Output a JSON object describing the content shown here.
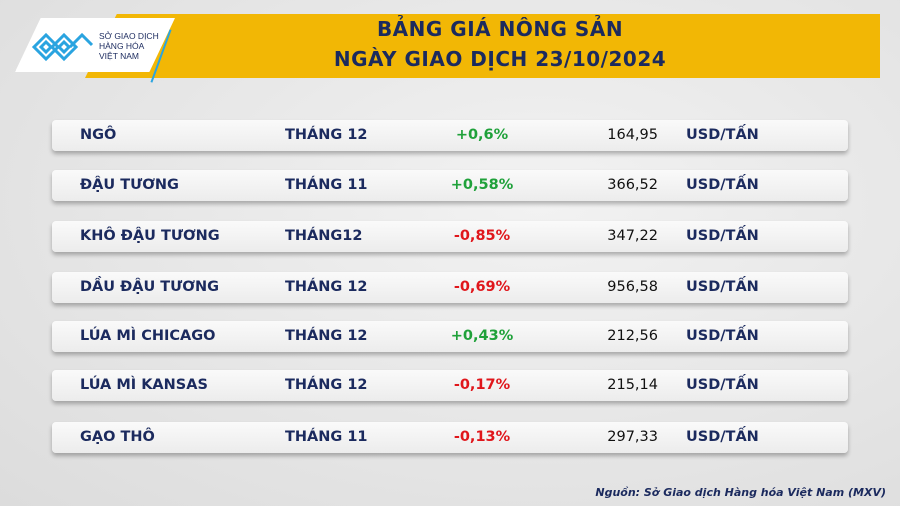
{
  "header": {
    "title_line1": "BẢNG GIÁ NÔNG SẢN",
    "title_line2": "NGÀY GIAO DỊCH 23/10/2024"
  },
  "logo": {
    "text_line1": "SỞ GIAO DỊCH",
    "text_line2": "HÀNG HÓA",
    "text_line3": "VIỆT NAM"
  },
  "colors": {
    "banner": "#f2b705",
    "text": "#1b2a5e",
    "up": "#1fa13a",
    "down": "#e0161b"
  },
  "rows": [
    {
      "name": "NGÔ",
      "month": "THÁNG 12",
      "change": "+0,6%",
      "direction": "up",
      "price": "164,95",
      "unit": "USD/TẤN"
    },
    {
      "name": "ĐẬU TƯƠNG",
      "month": "THÁNG 11",
      "change": "+0,58%",
      "direction": "up",
      "price": "366,52",
      "unit": "USD/TẤN"
    },
    {
      "name": "KHÔ ĐẬU TƯƠNG",
      "month": "THÁNG12",
      "change": "-0,85%",
      "direction": "down",
      "price": "347,22",
      "unit": "USD/TẤN"
    },
    {
      "name": "DẦU ĐẬU TƯƠNG",
      "month": "THÁNG 12",
      "change": "-0,69%",
      "direction": "down",
      "price": "956,58",
      "unit": "USD/TẤN"
    },
    {
      "name": "LÚA MÌ CHICAGO",
      "month": "THÁNG 12",
      "change": "+0,43%",
      "direction": "up",
      "price": "212,56",
      "unit": "USD/TẤN"
    },
    {
      "name": "LÚA MÌ KANSAS",
      "month": "THÁNG 12",
      "change": "-0,17%",
      "direction": "down",
      "price": "215,14",
      "unit": "USD/TẤN"
    },
    {
      "name": "GẠO THÔ",
      "month": "THÁNG 11",
      "change": "-0,13%",
      "direction": "down",
      "price": "297,33",
      "unit": "USD/TẤN"
    }
  ],
  "footer": {
    "source": "Nguồn: Sở Giao dịch Hàng hóa Việt Nam (MXV)"
  }
}
